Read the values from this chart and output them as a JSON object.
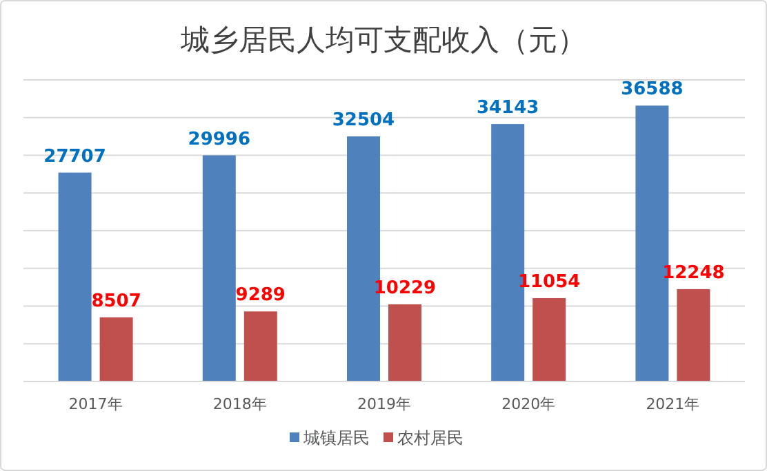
{
  "chart_data": {
    "type": "bar",
    "title": "城乡居民人均可支配收入（元）",
    "categories": [
      "2017年",
      "2018年",
      "2019年",
      "2020年",
      "2021年"
    ],
    "series": [
      {
        "name": "城镇居民",
        "color": "#4f81bd",
        "values": [
          27707,
          29996,
          32504,
          34143,
          36588
        ]
      },
      {
        "name": "农村居民",
        "color": "#c0504d",
        "values": [
          8507,
          9289,
          10229,
          11054,
          12248
        ]
      }
    ],
    "ylim": [
      0,
      40000
    ],
    "yticks": [
      {
        "value": 0,
        "label": null
      },
      {
        "value": 5000,
        "label": null
      },
      {
        "value": 10000,
        "label": null
      },
      {
        "value": 15000,
        "label": null
      },
      {
        "value": 20000,
        "label": null
      },
      {
        "value": 25000,
        "label": null
      },
      {
        "value": 30000,
        "label": null
      },
      {
        "value": 35000,
        "label": null
      },
      {
        "value": 40000,
        "label": null
      }
    ],
    "grid": "y",
    "legend": "bottom",
    "data_labels": true
  }
}
